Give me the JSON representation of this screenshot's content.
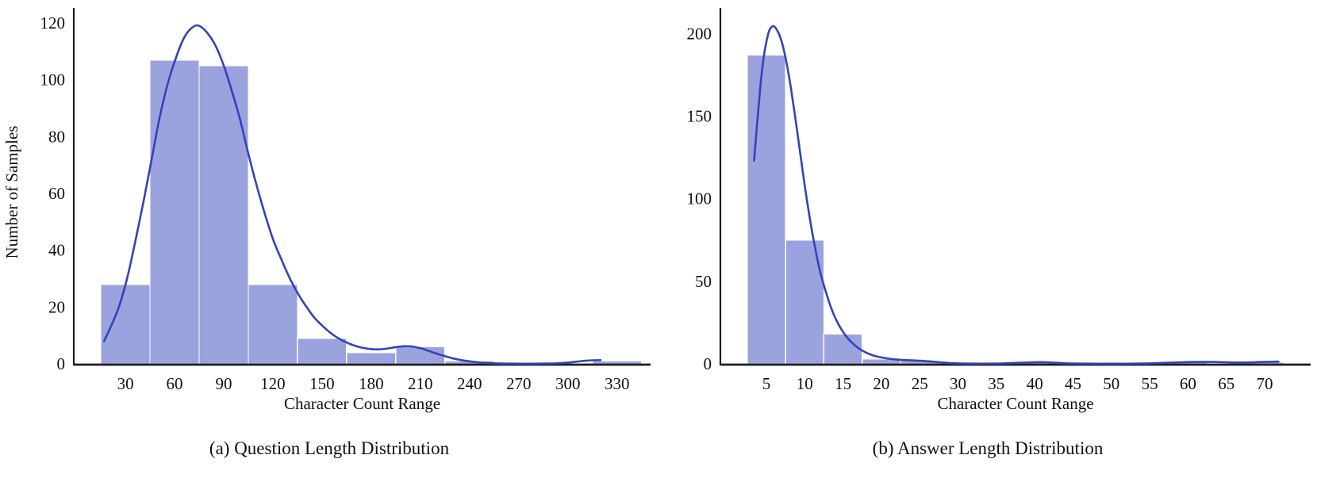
{
  "styles": {
    "background": "#ffffff",
    "bar_fill": "#9ba3de",
    "bar_edge": "#ffffff",
    "kde_color": "#3343b8",
    "axis_color": "#1c1c1c",
    "text_color": "#111111"
  },
  "chart_data": [
    {
      "id": "question_length",
      "type": "histogram+kde",
      "title": "(a) Question Length Distribution",
      "xlabel": "Character Count Range",
      "ylabel": "Number of Samples",
      "legend": "none",
      "grid": false,
      "bin_width": 30,
      "bin_centers": [
        30,
        60,
        90,
        120,
        150,
        180,
        210,
        240,
        270,
        300,
        330
      ],
      "counts": [
        28,
        107,
        105,
        28,
        9,
        4,
        6,
        1,
        0,
        0,
        1
      ],
      "x_ticks": [
        30,
        60,
        90,
        120,
        150,
        180,
        210,
        240,
        270,
        300,
        330
      ],
      "y_ticks": [
        0,
        20,
        40,
        60,
        80,
        100,
        120
      ],
      "xlim": [
        -1.5,
        350.5
      ],
      "ylim": [
        0,
        125.3
      ],
      "kde_peak": {
        "x": 75,
        "y": 119
      },
      "kde": [
        [
          17,
          8
        ],
        [
          21,
          13
        ],
        [
          26,
          20
        ],
        [
          31,
          30
        ],
        [
          36,
          43
        ],
        [
          41,
          57
        ],
        [
          46,
          72
        ],
        [
          51,
          87
        ],
        [
          56,
          99
        ],
        [
          61,
          108
        ],
        [
          66,
          115
        ],
        [
          71,
          118.5
        ],
        [
          75,
          119
        ],
        [
          80,
          116.5
        ],
        [
          85,
          112
        ],
        [
          90,
          105
        ],
        [
          95,
          96
        ],
        [
          100,
          86
        ],
        [
          105,
          74
        ],
        [
          110,
          63
        ],
        [
          115,
          53
        ],
        [
          120,
          44
        ],
        [
          125,
          37
        ],
        [
          130,
          30.5
        ],
        [
          135,
          25
        ],
        [
          140,
          20.5
        ],
        [
          145,
          16.5
        ],
        [
          150,
          13.5
        ],
        [
          155,
          11
        ],
        [
          160,
          9
        ],
        [
          165,
          7.5
        ],
        [
          170,
          6.4
        ],
        [
          175,
          5.6
        ],
        [
          180,
          5.2
        ],
        [
          185,
          5.1
        ],
        [
          190,
          5.4
        ],
        [
          195,
          5.9
        ],
        [
          200,
          6.2
        ],
        [
          205,
          6.1
        ],
        [
          210,
          5.5
        ],
        [
          215,
          4.6
        ],
        [
          220,
          3.6
        ],
        [
          225,
          2.7
        ],
        [
          230,
          1.9
        ],
        [
          235,
          1.3
        ],
        [
          240,
          0.9
        ],
        [
          245,
          0.55
        ],
        [
          250,
          0.35
        ],
        [
          255,
          0.2
        ],
        [
          260,
          0.12
        ],
        [
          270,
          0.06
        ],
        [
          280,
          0.06
        ],
        [
          290,
          0.12
        ],
        [
          295,
          0.25
        ],
        [
          300,
          0.45
        ],
        [
          305,
          0.75
        ],
        [
          310,
          1.05
        ],
        [
          315,
          1.25
        ],
        [
          320,
          1.3
        ]
      ]
    },
    {
      "id": "answer_length",
      "type": "histogram+kde",
      "title": "(b) Answer Length Distribution",
      "xlabel": "Character Count Range",
      "ylabel": "",
      "legend": "none",
      "grid": false,
      "bin_width": 5,
      "bin_centers": [
        5,
        10,
        15,
        20,
        25,
        30,
        35,
        40,
        45,
        50,
        55,
        60,
        65,
        70
      ],
      "counts": [
        187,
        75,
        18,
        3,
        2,
        0,
        0,
        1,
        0,
        0,
        0,
        1,
        0,
        1
      ],
      "x_ticks": [
        5,
        10,
        15,
        20,
        25,
        30,
        35,
        40,
        45,
        50,
        55,
        60,
        65,
        70
      ],
      "y_ticks": [
        0,
        50,
        100,
        150,
        200
      ],
      "xlim": [
        -1,
        76
      ],
      "ylim": [
        0,
        215.5
      ],
      "kde_peak": {
        "x": 6,
        "y": 204.5
      },
      "kde": [
        [
          3.4,
          123
        ],
        [
          3.8,
          146
        ],
        [
          4.2,
          167
        ],
        [
          4.6,
          184
        ],
        [
          5.0,
          195
        ],
        [
          5.4,
          202
        ],
        [
          5.9,
          204.5
        ],
        [
          6.4,
          202
        ],
        [
          7.0,
          195
        ],
        [
          7.6,
          183
        ],
        [
          8.2,
          167
        ],
        [
          8.8,
          148
        ],
        [
          9.4,
          128
        ],
        [
          10.0,
          108
        ],
        [
          10.6,
          90
        ],
        [
          11.2,
          74
        ],
        [
          12,
          56
        ],
        [
          12.8,
          43
        ],
        [
          13.6,
          32
        ],
        [
          14.4,
          24
        ],
        [
          15.2,
          18
        ],
        [
          16,
          13.5
        ],
        [
          17,
          9.5
        ],
        [
          18,
          6.8
        ],
        [
          19,
          5
        ],
        [
          20,
          3.9
        ],
        [
          21,
          3.1
        ],
        [
          22,
          2.6
        ],
        [
          23,
          2.3
        ],
        [
          24,
          2.1
        ],
        [
          25,
          1.9
        ],
        [
          26,
          1.6
        ],
        [
          27,
          1.2
        ],
        [
          28,
          0.8
        ],
        [
          29,
          0.5
        ],
        [
          30,
          0.3
        ],
        [
          31,
          0.2
        ],
        [
          32,
          0.15
        ],
        [
          34,
          0.12
        ],
        [
          36,
          0.3
        ],
        [
          38,
          0.65
        ],
        [
          40,
          1.0
        ],
        [
          41,
          1.05
        ],
        [
          42,
          0.85
        ],
        [
          43,
          0.6
        ],
        [
          44,
          0.35
        ],
        [
          45,
          0.2
        ],
        [
          47,
          0.12
        ],
        [
          49,
          0.1
        ],
        [
          51,
          0.1
        ],
        [
          53,
          0.15
        ],
        [
          55,
          0.3
        ],
        [
          57,
          0.6
        ],
        [
          59,
          0.95
        ],
        [
          61,
          1.15
        ],
        [
          63,
          1.15
        ],
        [
          65,
          0.95
        ],
        [
          66.5,
          0.8
        ],
        [
          68,
          0.85
        ],
        [
          69.5,
          1.1
        ],
        [
          71,
          1.3
        ],
        [
          71.8,
          1.35
        ]
      ]
    }
  ]
}
